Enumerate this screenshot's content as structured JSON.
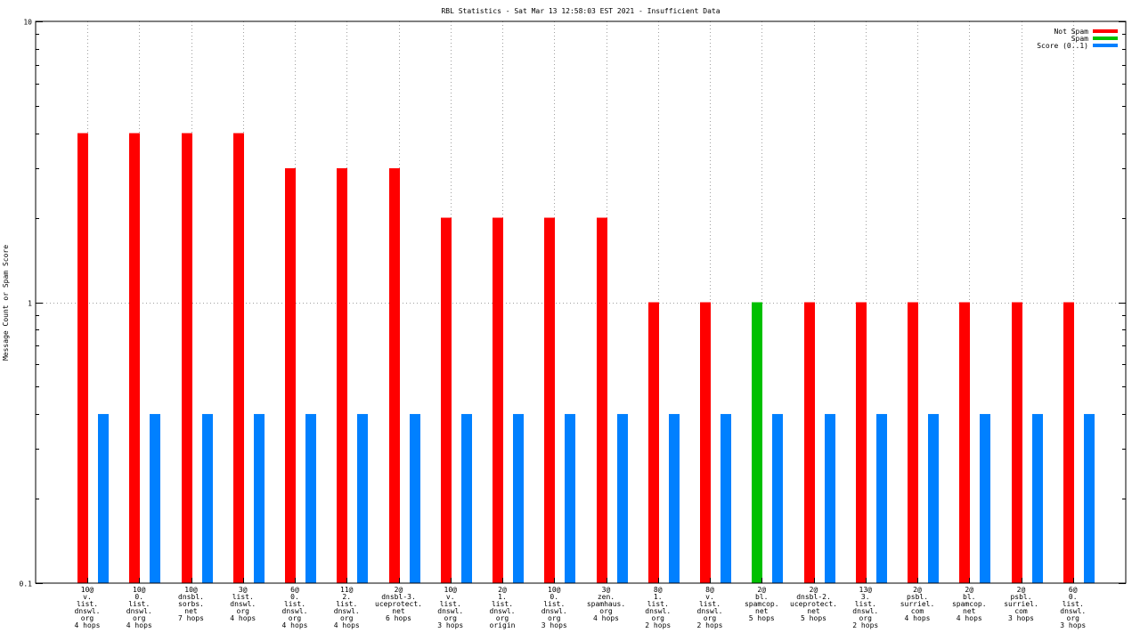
{
  "chart_data": {
    "type": "bar",
    "title": "RBL Statistics - Sat Mar 13 12:58:03 EST 2021 - Insufficient Data",
    "xlabel": "",
    "ylabel": "Message Count or Spam Score",
    "yscale": "log",
    "ylim": [
      0.1,
      10
    ],
    "yticks": [
      "0.1",
      "1",
      "10"
    ],
    "grid": true,
    "legend_position": "top-right",
    "categories": [
      [
        "10@",
        "v.",
        "list.",
        "dnswl.",
        "org",
        "4 hops"
      ],
      [
        "10@",
        "0.",
        "list.",
        "dnswl.",
        "org",
        "4 hops"
      ],
      [
        "10@",
        "dnsbl.",
        "sorbs.",
        "net",
        "7 hops"
      ],
      [
        "3@",
        "list.",
        "dnswl.",
        "org",
        "4 hops"
      ],
      [
        "6@",
        "0.",
        "list.",
        "dnswl.",
        "org",
        "4 hops"
      ],
      [
        "11@",
        "2.",
        "list.",
        "dnswl.",
        "org",
        "4 hops"
      ],
      [
        "2@",
        "dnsbl-3.",
        "uceprotect.",
        "net",
        "6 hops"
      ],
      [
        "10@",
        "v.",
        "list.",
        "dnswl.",
        "org",
        "3 hops"
      ],
      [
        "2@",
        "1.",
        "list.",
        "dnswl.",
        "org",
        "origin"
      ],
      [
        "10@",
        "0.",
        "list.",
        "dnswl.",
        "org",
        "3 hops"
      ],
      [
        "3@",
        "zen.",
        "spamhaus.",
        "org",
        "4 hops"
      ],
      [
        "8@",
        "1.",
        "list.",
        "dnswl.",
        "org",
        "2 hops"
      ],
      [
        "8@",
        "v.",
        "list.",
        "dnswl.",
        "org",
        "2 hops"
      ],
      [
        "2@",
        "bl.",
        "spamcop.",
        "net",
        "5 hops"
      ],
      [
        "2@",
        "dnsbl-2.",
        "uceprotect.",
        "net",
        "5 hops"
      ],
      [
        "13@",
        "3.",
        "list.",
        "dnswl.",
        "org",
        "2 hops"
      ],
      [
        "2@",
        "psbl.",
        "surriel.",
        "com",
        "4 hops"
      ],
      [
        "2@",
        "bl.",
        "spamcop.",
        "net",
        "4 hops"
      ],
      [
        "2@",
        "psbl.",
        "surriel.",
        "com",
        "3 hops"
      ],
      [
        "6@",
        "0.",
        "list.",
        "dnswl.",
        "org",
        "3 hops"
      ]
    ],
    "series": [
      {
        "name": "Not Spam",
        "color": "#ff0000",
        "values": [
          4,
          4,
          4,
          4,
          3,
          3,
          3,
          2,
          2,
          2,
          2,
          1,
          1,
          0,
          1,
          1,
          1,
          1,
          1,
          1
        ]
      },
      {
        "name": "Spam",
        "color": "#00c000",
        "values": [
          0,
          0,
          0,
          0,
          0,
          0,
          0,
          0,
          0,
          0,
          0,
          0,
          0,
          1,
          0,
          0,
          0,
          0,
          0,
          0
        ]
      },
      {
        "name": "Score (0..1)",
        "color": "#0080ff",
        "values": [
          0.4,
          0.4,
          0.4,
          0.4,
          0.4,
          0.4,
          0.4,
          0.4,
          0.4,
          0.4,
          0.4,
          0.4,
          0.4,
          0.4,
          0.4,
          0.4,
          0.4,
          0.4,
          0.4,
          0.4
        ]
      }
    ]
  }
}
